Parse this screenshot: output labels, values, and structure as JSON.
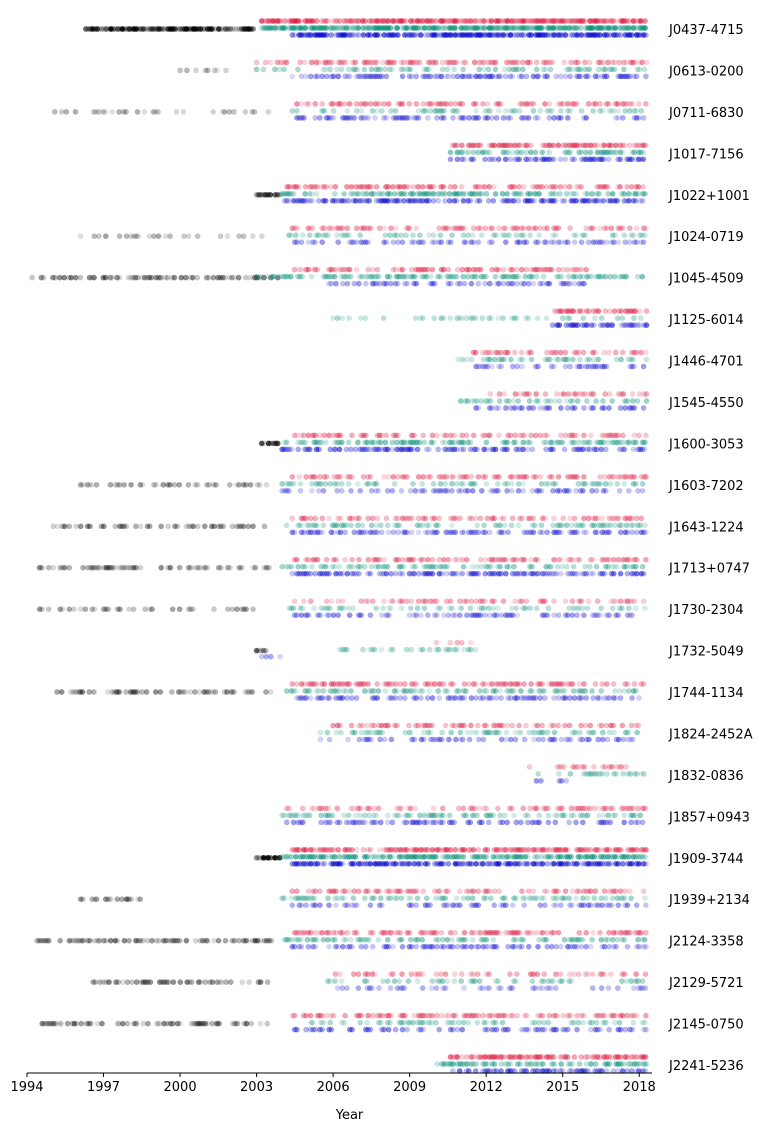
{
  "chart_data": {
    "type": "scatter",
    "title": "",
    "xlabel": "Year",
    "ylabel": "",
    "xlim": [
      1994,
      2018.5
    ],
    "xticks": [
      1994,
      1997,
      2000,
      2003,
      2006,
      2009,
      2012,
      2015,
      2018
    ],
    "grid": false,
    "legend": "none",
    "series_colors": {
      "early": "#000000",
      "band_top": "#dc143c",
      "band_mid": "#008b74",
      "band_low": "#0000cd"
    },
    "pulsars": [
      {
        "name": "J0437-4715",
        "early": [
          [
            1996.3,
            2002.9,
            1.0
          ]
        ],
        "top": [
          [
            2003.2,
            2018.3,
            0.85
          ]
        ],
        "mid": [
          [
            2003.2,
            2018.3,
            0.9
          ]
        ],
        "low": [
          [
            2004.4,
            2018.3,
            0.85
          ]
        ]
      },
      {
        "name": "J0613-0200",
        "early": [
          [
            2000.0,
            2001.8,
            0.25
          ]
        ],
        "top": [
          [
            2003.0,
            2018.3,
            0.45
          ]
        ],
        "mid": [
          [
            2003.0,
            2018.3,
            0.35
          ]
        ],
        "low": [
          [
            2004.4,
            2018.3,
            0.5
          ]
        ]
      },
      {
        "name": "J0711-6830",
        "early": [
          [
            1995.0,
            2003.6,
            0.25
          ]
        ],
        "top": [
          [
            2004.4,
            2018.3,
            0.45
          ]
        ],
        "mid": [
          [
            2004.4,
            2018.3,
            0.3
          ]
        ],
        "low": [
          [
            2004.4,
            2018.3,
            0.45
          ]
        ]
      },
      {
        "name": "J1017-7156",
        "early": [],
        "top": [
          [
            2010.6,
            2018.3,
            0.6
          ]
        ],
        "mid": [
          [
            2010.6,
            2018.3,
            0.55
          ]
        ],
        "low": [
          [
            2010.6,
            2018.3,
            0.55
          ]
        ]
      },
      {
        "name": "J1022+1001",
        "early": [
          [
            2003.0,
            2003.9,
            0.85
          ]
        ],
        "top": [
          [
            2004.2,
            2018.3,
            0.5
          ]
        ],
        "mid": [
          [
            2004.0,
            2018.3,
            0.55
          ]
        ],
        "low": [
          [
            2004.0,
            2018.3,
            0.6
          ]
        ]
      },
      {
        "name": "J1024-0719",
        "early": [
          [
            1996.1,
            2003.6,
            0.3
          ]
        ],
        "top": [
          [
            2004.4,
            2018.3,
            0.4
          ]
        ],
        "mid": [
          [
            2004.0,
            2018.3,
            0.3
          ]
        ],
        "low": [
          [
            2004.4,
            2018.3,
            0.4
          ]
        ]
      },
      {
        "name": "J1045-4509",
        "early": [
          [
            1994.2,
            2003.9,
            0.45
          ]
        ],
        "top": [
          [
            2004.4,
            2016.0,
            0.5
          ]
        ],
        "mid": [
          [
            2003.0,
            2018.3,
            0.5
          ]
        ],
        "low": [
          [
            2005.3,
            2016.0,
            0.45
          ]
        ]
      },
      {
        "name": "J1125-6014",
        "early": [],
        "top": [
          [
            2014.6,
            2018.3,
            0.6
          ]
        ],
        "mid": [
          [
            2006.0,
            2018.3,
            0.25
          ]
        ],
        "low": [
          [
            2014.6,
            2018.3,
            0.65
          ]
        ]
      },
      {
        "name": "J1446-4701",
        "early": [],
        "top": [
          [
            2011.5,
            2018.3,
            0.45
          ]
        ],
        "mid": [
          [
            2010.9,
            2018.3,
            0.4
          ]
        ],
        "low": [
          [
            2011.6,
            2018.3,
            0.45
          ]
        ]
      },
      {
        "name": "J1545-4550",
        "early": [],
        "top": [
          [
            2011.8,
            2018.3,
            0.45
          ]
        ],
        "mid": [
          [
            2011.0,
            2018.3,
            0.4
          ]
        ],
        "low": [
          [
            2011.6,
            2018.3,
            0.45
          ]
        ]
      },
      {
        "name": "J1600-3053",
        "early": [
          [
            2003.2,
            2003.9,
            0.8
          ]
        ],
        "top": [
          [
            2004.4,
            2018.3,
            0.45
          ]
        ],
        "mid": [
          [
            2004.0,
            2018.3,
            0.5
          ]
        ],
        "low": [
          [
            2004.0,
            2018.3,
            0.6
          ]
        ]
      },
      {
        "name": "J1603-7202",
        "early": [
          [
            1996.1,
            2003.6,
            0.35
          ]
        ],
        "top": [
          [
            2004.4,
            2018.3,
            0.4
          ]
        ],
        "mid": [
          [
            2004.0,
            2018.3,
            0.35
          ]
        ],
        "low": [
          [
            2004.0,
            2018.3,
            0.4
          ]
        ]
      },
      {
        "name": "J1643-1224",
        "early": [
          [
            1994.4,
            2003.6,
            0.4
          ]
        ],
        "top": [
          [
            2004.4,
            2018.3,
            0.4
          ]
        ],
        "mid": [
          [
            2004.0,
            2018.3,
            0.35
          ]
        ],
        "low": [
          [
            2004.4,
            2018.3,
            0.45
          ]
        ]
      },
      {
        "name": "J1713+0747",
        "early": [
          [
            1994.4,
            2003.8,
            0.45
          ]
        ],
        "top": [
          [
            2004.4,
            2018.3,
            0.45
          ]
        ],
        "mid": [
          [
            2004.0,
            2018.3,
            0.4
          ]
        ],
        "low": [
          [
            2004.4,
            2018.3,
            0.55
          ]
        ]
      },
      {
        "name": "J1730-2304",
        "early": [
          [
            1994.4,
            2003.0,
            0.35
          ]
        ],
        "top": [
          [
            2004.4,
            2018.3,
            0.4
          ]
        ],
        "mid": [
          [
            2004.0,
            2018.3,
            0.3
          ]
        ],
        "low": [
          [
            2004.4,
            2018.3,
            0.4
          ]
        ]
      },
      {
        "name": "J1732-5049",
        "early": [
          [
            2003.0,
            2003.6,
            0.7
          ]
        ],
        "top": [
          [
            2009.6,
            2011.6,
            0.2
          ]
        ],
        "mid": [
          [
            2006.0,
            2011.6,
            0.3
          ]
        ],
        "low": [
          [
            2003.2,
            2004.0,
            0.4
          ]
        ]
      },
      {
        "name": "J1744-1134",
        "early": [
          [
            1995.0,
            2003.6,
            0.45
          ]
        ],
        "top": [
          [
            2004.4,
            2018.3,
            0.45
          ]
        ],
        "mid": [
          [
            2004.0,
            2018.3,
            0.45
          ]
        ],
        "low": [
          [
            2004.4,
            2018.3,
            0.45
          ]
        ]
      },
      {
        "name": "J1824-2452A",
        "early": [],
        "top": [
          [
            2006.0,
            2018.0,
            0.45
          ]
        ],
        "mid": [
          [
            2005.5,
            2018.0,
            0.35
          ]
        ],
        "low": [
          [
            2005.5,
            2018.0,
            0.4
          ]
        ]
      },
      {
        "name": "J1832-0836",
        "early": [],
        "top": [
          [
            2013.7,
            2018.3,
            0.3
          ]
        ],
        "mid": [
          [
            2013.5,
            2018.3,
            0.35
          ]
        ],
        "low": [
          [
            2013.7,
            2015.2,
            0.4
          ]
        ]
      },
      {
        "name": "J1857+0943",
        "early": [],
        "top": [
          [
            2004.0,
            2018.3,
            0.35
          ]
        ],
        "mid": [
          [
            2004.0,
            2018.3,
            0.4
          ]
        ],
        "low": [
          [
            2004.0,
            2018.3,
            0.45
          ]
        ]
      },
      {
        "name": "J1909-3744",
        "early": [
          [
            2003.0,
            2003.9,
            1.0
          ]
        ],
        "top": [
          [
            2004.4,
            2018.3,
            0.7
          ]
        ],
        "mid": [
          [
            2004.0,
            2018.3,
            0.7
          ]
        ],
        "low": [
          [
            2004.4,
            2018.3,
            0.8
          ]
        ]
      },
      {
        "name": "J1939+2134",
        "early": [
          [
            1996.1,
            1998.5,
            0.5
          ]
        ],
        "top": [
          [
            2004.4,
            2018.3,
            0.4
          ]
        ],
        "mid": [
          [
            2004.0,
            2018.3,
            0.35
          ]
        ],
        "low": [
          [
            2004.4,
            2018.3,
            0.4
          ]
        ]
      },
      {
        "name": "J2124-3358",
        "early": [
          [
            1994.4,
            2003.6,
            0.5
          ]
        ],
        "top": [
          [
            2004.4,
            2018.3,
            0.45
          ]
        ],
        "mid": [
          [
            2004.0,
            2018.3,
            0.45
          ]
        ],
        "low": [
          [
            2004.4,
            2018.3,
            0.45
          ]
        ]
      },
      {
        "name": "J2129-5721",
        "early": [
          [
            1996.5,
            2003.6,
            0.45
          ]
        ],
        "top": [
          [
            2006.0,
            2018.3,
            0.4
          ]
        ],
        "mid": [
          [
            2005.8,
            2018.3,
            0.35
          ]
        ],
        "low": [
          [
            2006.0,
            2018.3,
            0.3
          ]
        ]
      },
      {
        "name": "J2145-0750",
        "early": [
          [
            1994.6,
            2003.6,
            0.5
          ]
        ],
        "top": [
          [
            2004.4,
            2018.3,
            0.45
          ]
        ],
        "mid": [
          [
            2004.0,
            2018.3,
            0.35
          ]
        ],
        "low": [
          [
            2004.4,
            2018.3,
            0.45
          ]
        ]
      },
      {
        "name": "J2241-5236",
        "early": [],
        "top": [
          [
            2010.6,
            2018.3,
            0.65
          ]
        ],
        "mid": [
          [
            2009.9,
            2018.3,
            0.55
          ]
        ],
        "low": [
          [
            2010.6,
            2018.3,
            0.6
          ]
        ]
      }
    ]
  }
}
